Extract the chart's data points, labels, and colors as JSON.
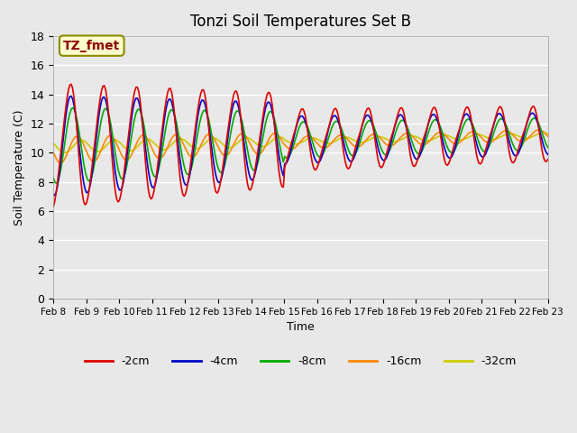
{
  "title": "Tonzi Soil Temperatures Set B",
  "xlabel": "Time",
  "ylabel": "Soil Temperature (C)",
  "ylim": [
    0,
    18
  ],
  "yticks": [
    0,
    2,
    4,
    6,
    8,
    10,
    12,
    14,
    16,
    18
  ],
  "x_labels": [
    "Feb 8",
    "Feb 9",
    "Feb 10",
    "Feb 11",
    "Feb 12",
    "Feb 13",
    "Feb 14",
    "Feb 15",
    "Feb 16",
    "Feb 17",
    "Feb 18",
    "Feb 19",
    "Feb 20",
    "Feb 21",
    "Feb 22",
    "Feb 23"
  ],
  "annotation_text": "TZ_fmet",
  "annotation_color": "#8B0000",
  "annotation_bg": "#FFFFCC",
  "annotation_border": "#8B8B00",
  "series_colors": [
    "#DD0000",
    "#0000CC",
    "#00AA00",
    "#FF8800",
    "#CCCC00"
  ],
  "series_labels": [
    "-2cm",
    "-4cm",
    "-8cm",
    "-16cm",
    "-32cm"
  ],
  "bg_color": "#E8E8E8",
  "grid_color": "#FFFFFF"
}
